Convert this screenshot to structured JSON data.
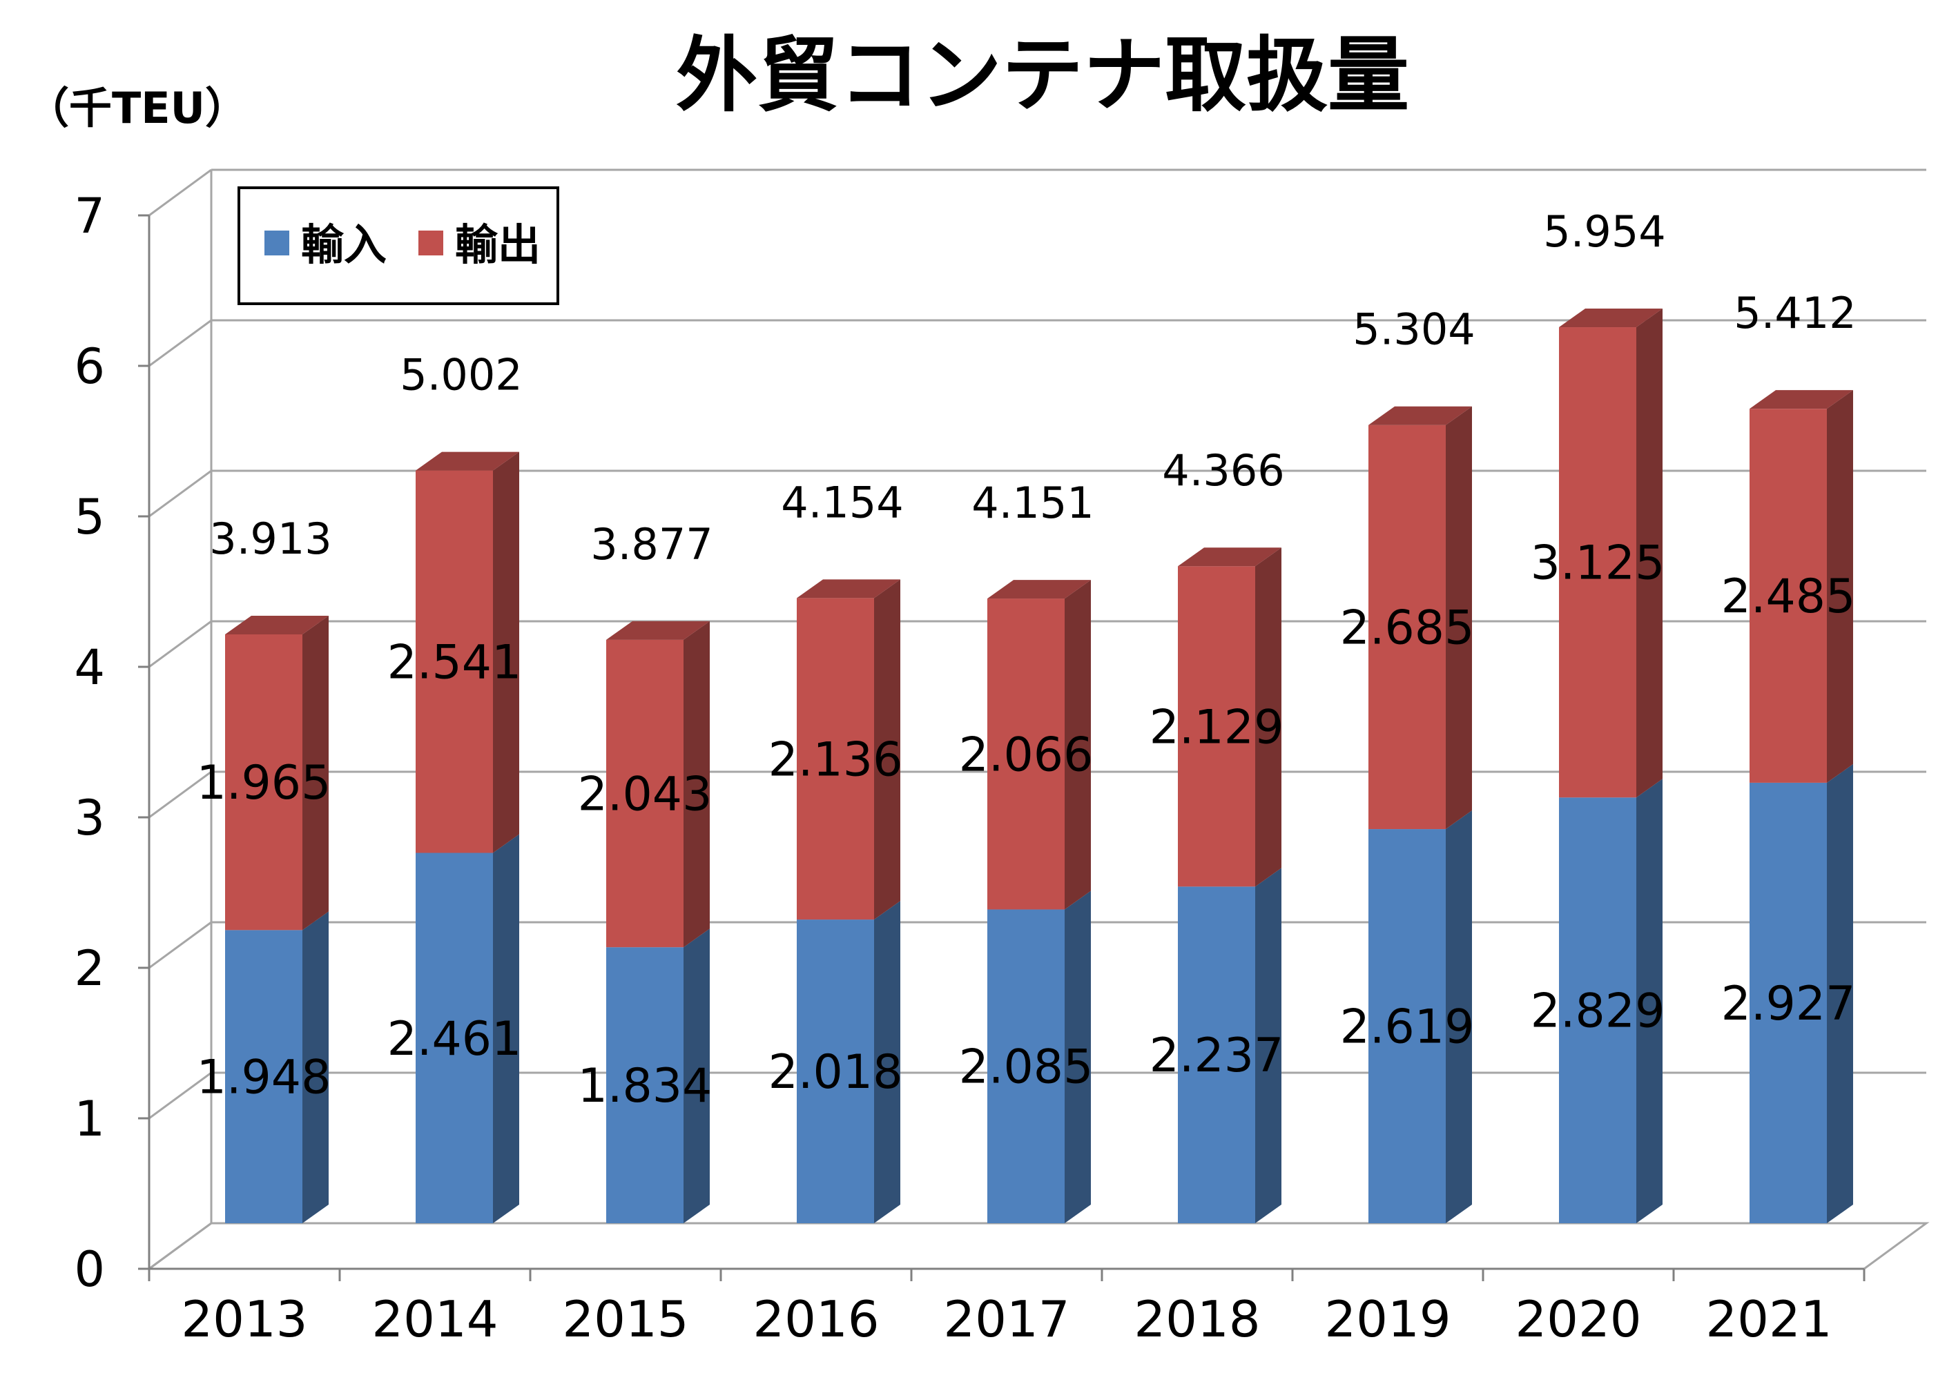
{
  "chart_data": {
    "type": "bar",
    "stacked": true,
    "style": "3d",
    "title": "外貿コンテナ取扱量",
    "unit_label": "（千TEU）",
    "categories": [
      "2013",
      "2014",
      "2015",
      "2016",
      "2017",
      "2018",
      "2019",
      "2020",
      "2021"
    ],
    "series": [
      {
        "name": "輸入",
        "color": "#4f81bd",
        "values": [
          1.948,
          2.461,
          1.834,
          2.018,
          2.085,
          2.237,
          2.619,
          2.829,
          2.927
        ],
        "labels": [
          "1.948",
          "2.461",
          "1.834",
          "2.018",
          "2.085",
          "2.237",
          "2.619",
          "2.829",
          "2.927"
        ]
      },
      {
        "name": "輸出",
        "color": "#c0504d",
        "values": [
          1.965,
          2.541,
          2.043,
          2.136,
          2.066,
          2.129,
          2.685,
          3.125,
          2.485
        ],
        "labels": [
          "1.965",
          "2.541",
          "2.043",
          "2.136",
          "2.066",
          "2.129",
          "2.685",
          "3.125",
          "2.485"
        ]
      }
    ],
    "totals": [
      3.913,
      5.002,
      3.877,
      4.154,
      4.151,
      4.366,
      5.304,
      5.954,
      5.412
    ],
    "total_labels": [
      "3.913",
      "5.002",
      "3.877",
      "4.154",
      "4.151",
      "4.366",
      "5.304",
      "5.954",
      "5.412"
    ],
    "ylim": [
      0,
      7
    ],
    "yticks": [
      "0",
      "1",
      "2",
      "3",
      "4",
      "5",
      "6",
      "7"
    ],
    "grid": true,
    "legend_position": "top-left"
  }
}
